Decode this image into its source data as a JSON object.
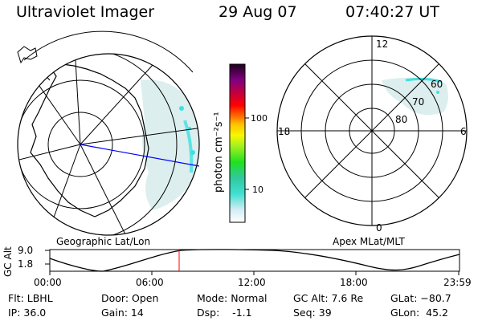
{
  "header": {
    "title": "Ultraviolet Imager",
    "date": "29 Aug 07",
    "time": "07:40:27 UT"
  },
  "left_panel": {
    "label": "Geographic Lat/Lon"
  },
  "right_panel": {
    "label": "Apex MLat/MLT",
    "mlt_labels": {
      "top": "12",
      "bottom": "0",
      "left": "18",
      "right": "6"
    },
    "lat_labels": [
      "60",
      "70",
      "80"
    ]
  },
  "colorbar": {
    "unit_label": "photon cm⁻²s⁻¹",
    "ticks": [
      "100",
      "10"
    ]
  },
  "altitude_plot": {
    "ylabel": "GC Alt",
    "y_ticks": [
      "9.0",
      "1.8"
    ],
    "x_ticks": [
      "00:00",
      "06:00",
      "12:00",
      "18:00",
      "23:59"
    ],
    "marker_time": "07:40"
  },
  "info": {
    "flt": "Flt: LBHL",
    "ip": "IP: 36.0",
    "door": "Door: Open",
    "gain": "Gain: 14",
    "mode": "Mode: Normal",
    "dsp": "Dsp:    -1.1",
    "gcalt": "GC Alt: 7.6 Re",
    "seq": "Seq: 39",
    "glat": "GLat: −80.7",
    "glon": "GLon:  45.2"
  },
  "colors": {
    "grid": "#000000",
    "track_line": "#0000ff",
    "marker_line": "#ff0000",
    "aurora_faint": "#d8ecec",
    "aurora_cyan": "#40e0e0"
  }
}
